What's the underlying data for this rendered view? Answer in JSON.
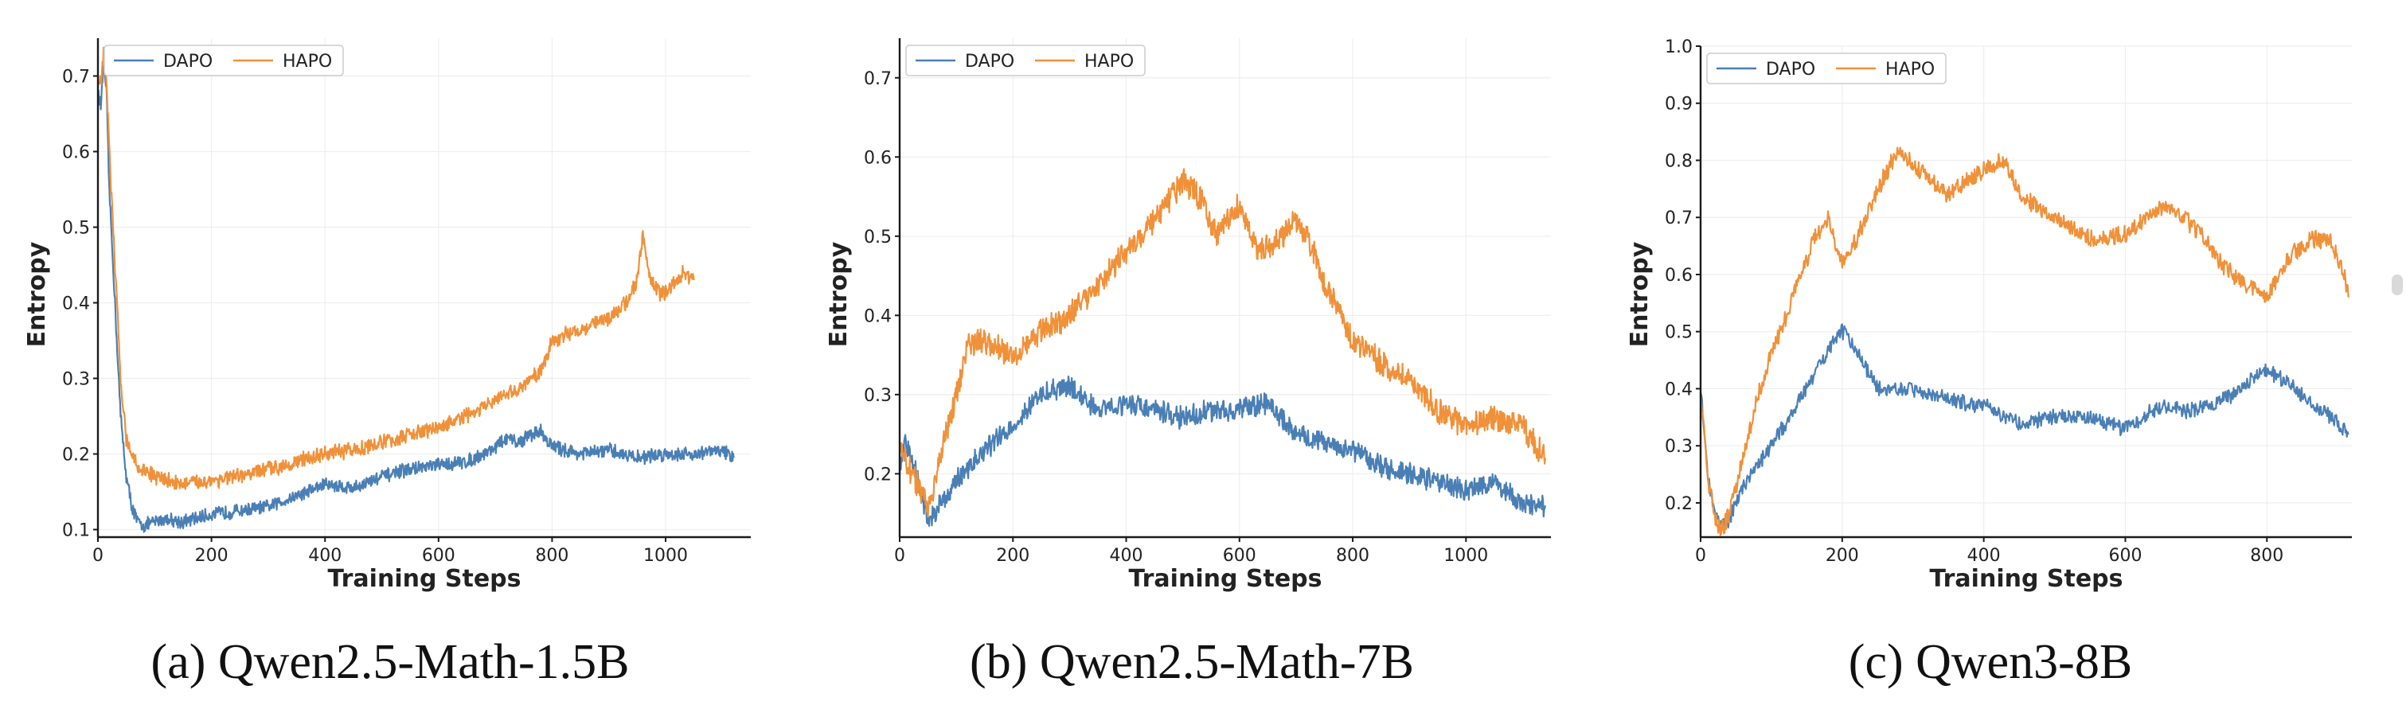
{
  "chart_data": [
    {
      "type": "line",
      "caption": "(a) Qwen2.5-Math-1.5B",
      "xlabel": "Training Steps",
      "ylabel": "Entropy",
      "xlim": [
        0,
        1150
      ],
      "ylim": [
        0.09,
        0.75
      ],
      "xticks": [
        0,
        200,
        400,
        600,
        800,
        1000
      ],
      "yticks": [
        0.1,
        0.2,
        0.3,
        0.4,
        0.5,
        0.6,
        0.7
      ],
      "ytick_labels": [
        "0.1",
        "0.2",
        "0.3",
        "0.4",
        "0.5",
        "0.6",
        "0.7"
      ],
      "grid": true,
      "legend_position": "top-left",
      "series": [
        {
          "name": "DAPO",
          "color": "#4a7fb5",
          "noise": 0.008,
          "x": [
            0,
            5,
            10,
            15,
            20,
            30,
            40,
            50,
            60,
            70,
            80,
            100,
            120,
            150,
            200,
            250,
            300,
            350,
            400,
            450,
            500,
            550,
            600,
            650,
            680,
            700,
            720,
            740,
            760,
            780,
            800,
            850,
            900,
            950,
            1000,
            1050,
            1100,
            1120
          ],
          "y": [
            0.68,
            0.66,
            0.72,
            0.68,
            0.55,
            0.4,
            0.25,
            0.17,
            0.13,
            0.11,
            0.105,
            0.11,
            0.115,
            0.11,
            0.12,
            0.125,
            0.13,
            0.145,
            0.16,
            0.155,
            0.17,
            0.18,
            0.185,
            0.19,
            0.2,
            0.21,
            0.22,
            0.215,
            0.225,
            0.23,
            0.21,
            0.2,
            0.205,
            0.195,
            0.2,
            0.2,
            0.205,
            0.195
          ]
        },
        {
          "name": "HAPO",
          "color": "#f0913a",
          "noise": 0.009,
          "x": [
            0,
            5,
            10,
            15,
            20,
            30,
            40,
            50,
            60,
            70,
            80,
            100,
            150,
            200,
            250,
            300,
            350,
            400,
            450,
            500,
            550,
            600,
            650,
            700,
            750,
            780,
            800,
            850,
            900,
            930,
            950,
            960,
            970,
            990,
            1010,
            1030,
            1050
          ],
          "y": [
            0.7,
            0.69,
            0.73,
            0.7,
            0.6,
            0.45,
            0.3,
            0.22,
            0.2,
            0.18,
            0.18,
            0.17,
            0.16,
            0.165,
            0.17,
            0.18,
            0.19,
            0.2,
            0.205,
            0.215,
            0.225,
            0.235,
            0.25,
            0.27,
            0.29,
            0.31,
            0.35,
            0.365,
            0.38,
            0.4,
            0.43,
            0.49,
            0.44,
            0.41,
            0.42,
            0.44,
            0.43
          ]
        }
      ]
    },
    {
      "type": "line",
      "caption": "(b) Qwen2.5-Math-7B",
      "xlabel": "Training Steps",
      "ylabel": "Entropy",
      "xlim": [
        0,
        1150
      ],
      "ylim": [
        0.12,
        0.75
      ],
      "xticks": [
        0,
        200,
        400,
        600,
        800,
        1000
      ],
      "yticks": [
        0.2,
        0.3,
        0.4,
        0.5,
        0.6,
        0.7
      ],
      "ytick_labels": [
        "0.2",
        "0.3",
        "0.4",
        "0.5",
        "0.6",
        "0.7"
      ],
      "grid": true,
      "legend_position": "top-left",
      "series": [
        {
          "name": "DAPO",
          "color": "#4a7fb5",
          "noise": 0.012,
          "x": [
            0,
            10,
            20,
            30,
            40,
            50,
            60,
            80,
            100,
            150,
            200,
            250,
            300,
            350,
            400,
            450,
            500,
            550,
            600,
            650,
            700,
            750,
            800,
            850,
            900,
            950,
            1000,
            1050,
            1100,
            1140
          ],
          "y": [
            0.21,
            0.24,
            0.22,
            0.2,
            0.17,
            0.14,
            0.15,
            0.17,
            0.19,
            0.23,
            0.26,
            0.3,
            0.31,
            0.28,
            0.29,
            0.28,
            0.27,
            0.28,
            0.28,
            0.29,
            0.25,
            0.24,
            0.23,
            0.21,
            0.2,
            0.19,
            0.18,
            0.19,
            0.16,
            0.16
          ]
        },
        {
          "name": "HAPO",
          "color": "#f0913a",
          "noise": 0.014,
          "x": [
            0,
            10,
            20,
            30,
            40,
            50,
            60,
            80,
            100,
            120,
            150,
            200,
            250,
            300,
            350,
            400,
            450,
            480,
            500,
            530,
            560,
            600,
            630,
            660,
            700,
            720,
            750,
            780,
            800,
            850,
            900,
            950,
            1000,
            1050,
            1100,
            1140
          ],
          "y": [
            0.24,
            0.22,
            0.2,
            0.19,
            0.17,
            0.16,
            0.18,
            0.25,
            0.3,
            0.36,
            0.37,
            0.35,
            0.38,
            0.4,
            0.44,
            0.48,
            0.52,
            0.55,
            0.57,
            0.55,
            0.5,
            0.54,
            0.48,
            0.49,
            0.52,
            0.5,
            0.44,
            0.4,
            0.37,
            0.34,
            0.32,
            0.28,
            0.26,
            0.27,
            0.26,
            0.22
          ]
        }
      ]
    },
    {
      "type": "line",
      "caption": "(c) Qwen3-8B",
      "xlabel": "Training Steps",
      "ylabel": "Entropy",
      "xlim": [
        0,
        920
      ],
      "ylim": [
        0.14,
        1.0
      ],
      "xticks": [
        0,
        200,
        400,
        600,
        800
      ],
      "yticks": [
        0.2,
        0.3,
        0.4,
        0.5,
        0.6,
        0.7,
        0.8,
        0.9,
        1.0
      ],
      "ytick_labels": [
        "0.2",
        "0.3",
        "0.4",
        "0.5",
        "0.6",
        "0.7",
        "0.8",
        "0.9",
        "1.0"
      ],
      "grid": true,
      "legend_position": "top-left",
      "series": [
        {
          "name": "DAPO",
          "color": "#4a7fb5",
          "noise": 0.012,
          "x": [
            0,
            10,
            20,
            30,
            40,
            50,
            70,
            100,
            130,
            160,
            180,
            200,
            220,
            250,
            300,
            350,
            400,
            450,
            500,
            550,
            600,
            650,
            700,
            750,
            780,
            800,
            830,
            860,
            900,
            915
          ],
          "y": [
            0.4,
            0.25,
            0.18,
            0.16,
            0.17,
            0.2,
            0.25,
            0.3,
            0.36,
            0.42,
            0.47,
            0.5,
            0.47,
            0.4,
            0.4,
            0.38,
            0.37,
            0.34,
            0.35,
            0.35,
            0.33,
            0.37,
            0.36,
            0.39,
            0.42,
            0.43,
            0.41,
            0.38,
            0.34,
            0.32
          ]
        },
        {
          "name": "HAPO",
          "color": "#f0913a",
          "noise": 0.014,
          "x": [
            0,
            10,
            20,
            30,
            40,
            60,
            80,
            100,
            130,
            160,
            180,
            200,
            220,
            250,
            280,
            300,
            350,
            400,
            430,
            450,
            500,
            550,
            600,
            650,
            680,
            700,
            750,
            800,
            830,
            860,
            890,
            910,
            915
          ],
          "y": [
            0.4,
            0.25,
            0.17,
            0.15,
            0.18,
            0.28,
            0.38,
            0.46,
            0.56,
            0.66,
            0.7,
            0.62,
            0.66,
            0.75,
            0.82,
            0.79,
            0.74,
            0.78,
            0.8,
            0.74,
            0.7,
            0.66,
            0.67,
            0.72,
            0.7,
            0.68,
            0.6,
            0.56,
            0.63,
            0.66,
            0.66,
            0.6,
            0.56
          ]
        }
      ]
    }
  ]
}
